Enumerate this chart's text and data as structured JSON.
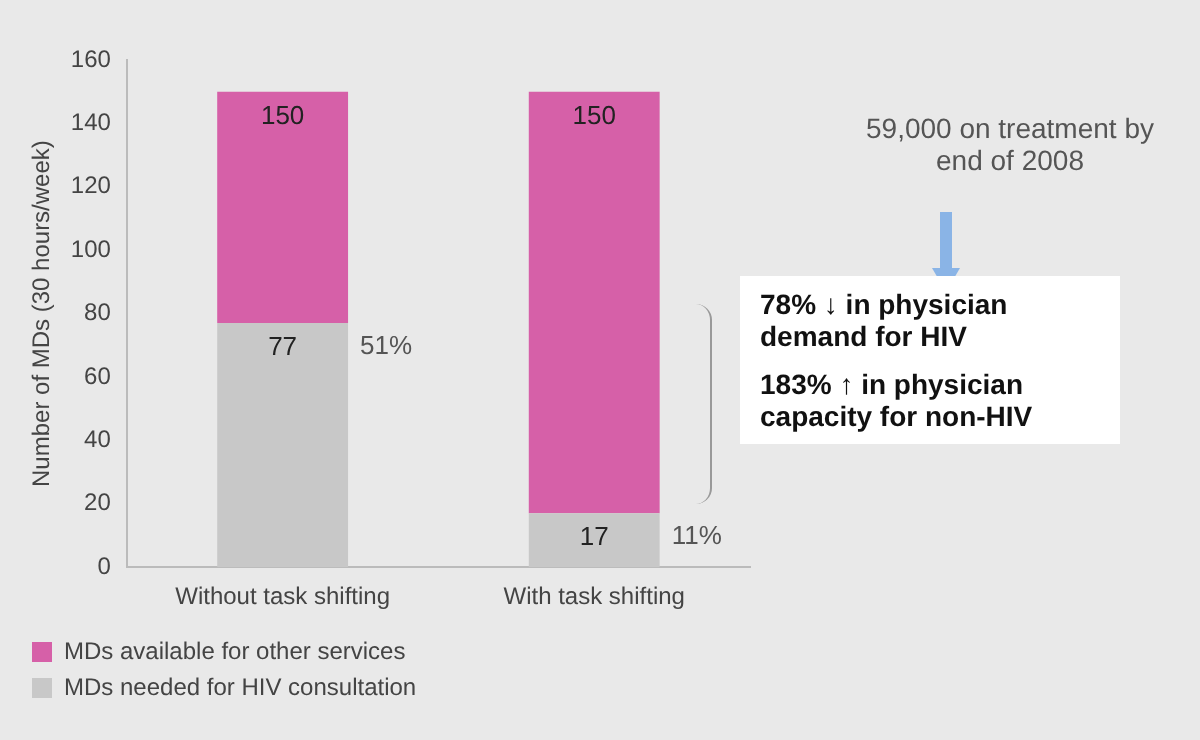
{
  "chart_data": {
    "type": "bar",
    "stacked": true,
    "ylabel": "Number of MDs (30 hours/week)",
    "categories": [
      "Without task shifting",
      "With task shifting"
    ],
    "series": [
      {
        "name": "MDs needed for HIV consultation",
        "color": "#c8c8c8",
        "values": [
          77,
          17
        ],
        "value_labels": [
          "77",
          "17"
        ]
      },
      {
        "name": "MDs available for other services",
        "color": "#d660a8",
        "values": [
          73,
          133
        ]
      }
    ],
    "totals": [
      "150",
      "150"
    ],
    "ylim": [
      0,
      160
    ],
    "yticks": [
      0,
      20,
      40,
      60,
      80,
      100,
      120,
      140,
      160
    ],
    "grid": false,
    "legend": "bottom left",
    "annotations": [
      {
        "text": "51%",
        "x": "Without task shifting",
        "y": 77
      },
      {
        "text": "11%",
        "x": "With task shifting",
        "y": 17
      },
      "59,000 on treatment by end of 2008",
      "78% ↓ in physician demand for HIV",
      "183% ↑ in physician capacity for non-HIV"
    ]
  }
}
